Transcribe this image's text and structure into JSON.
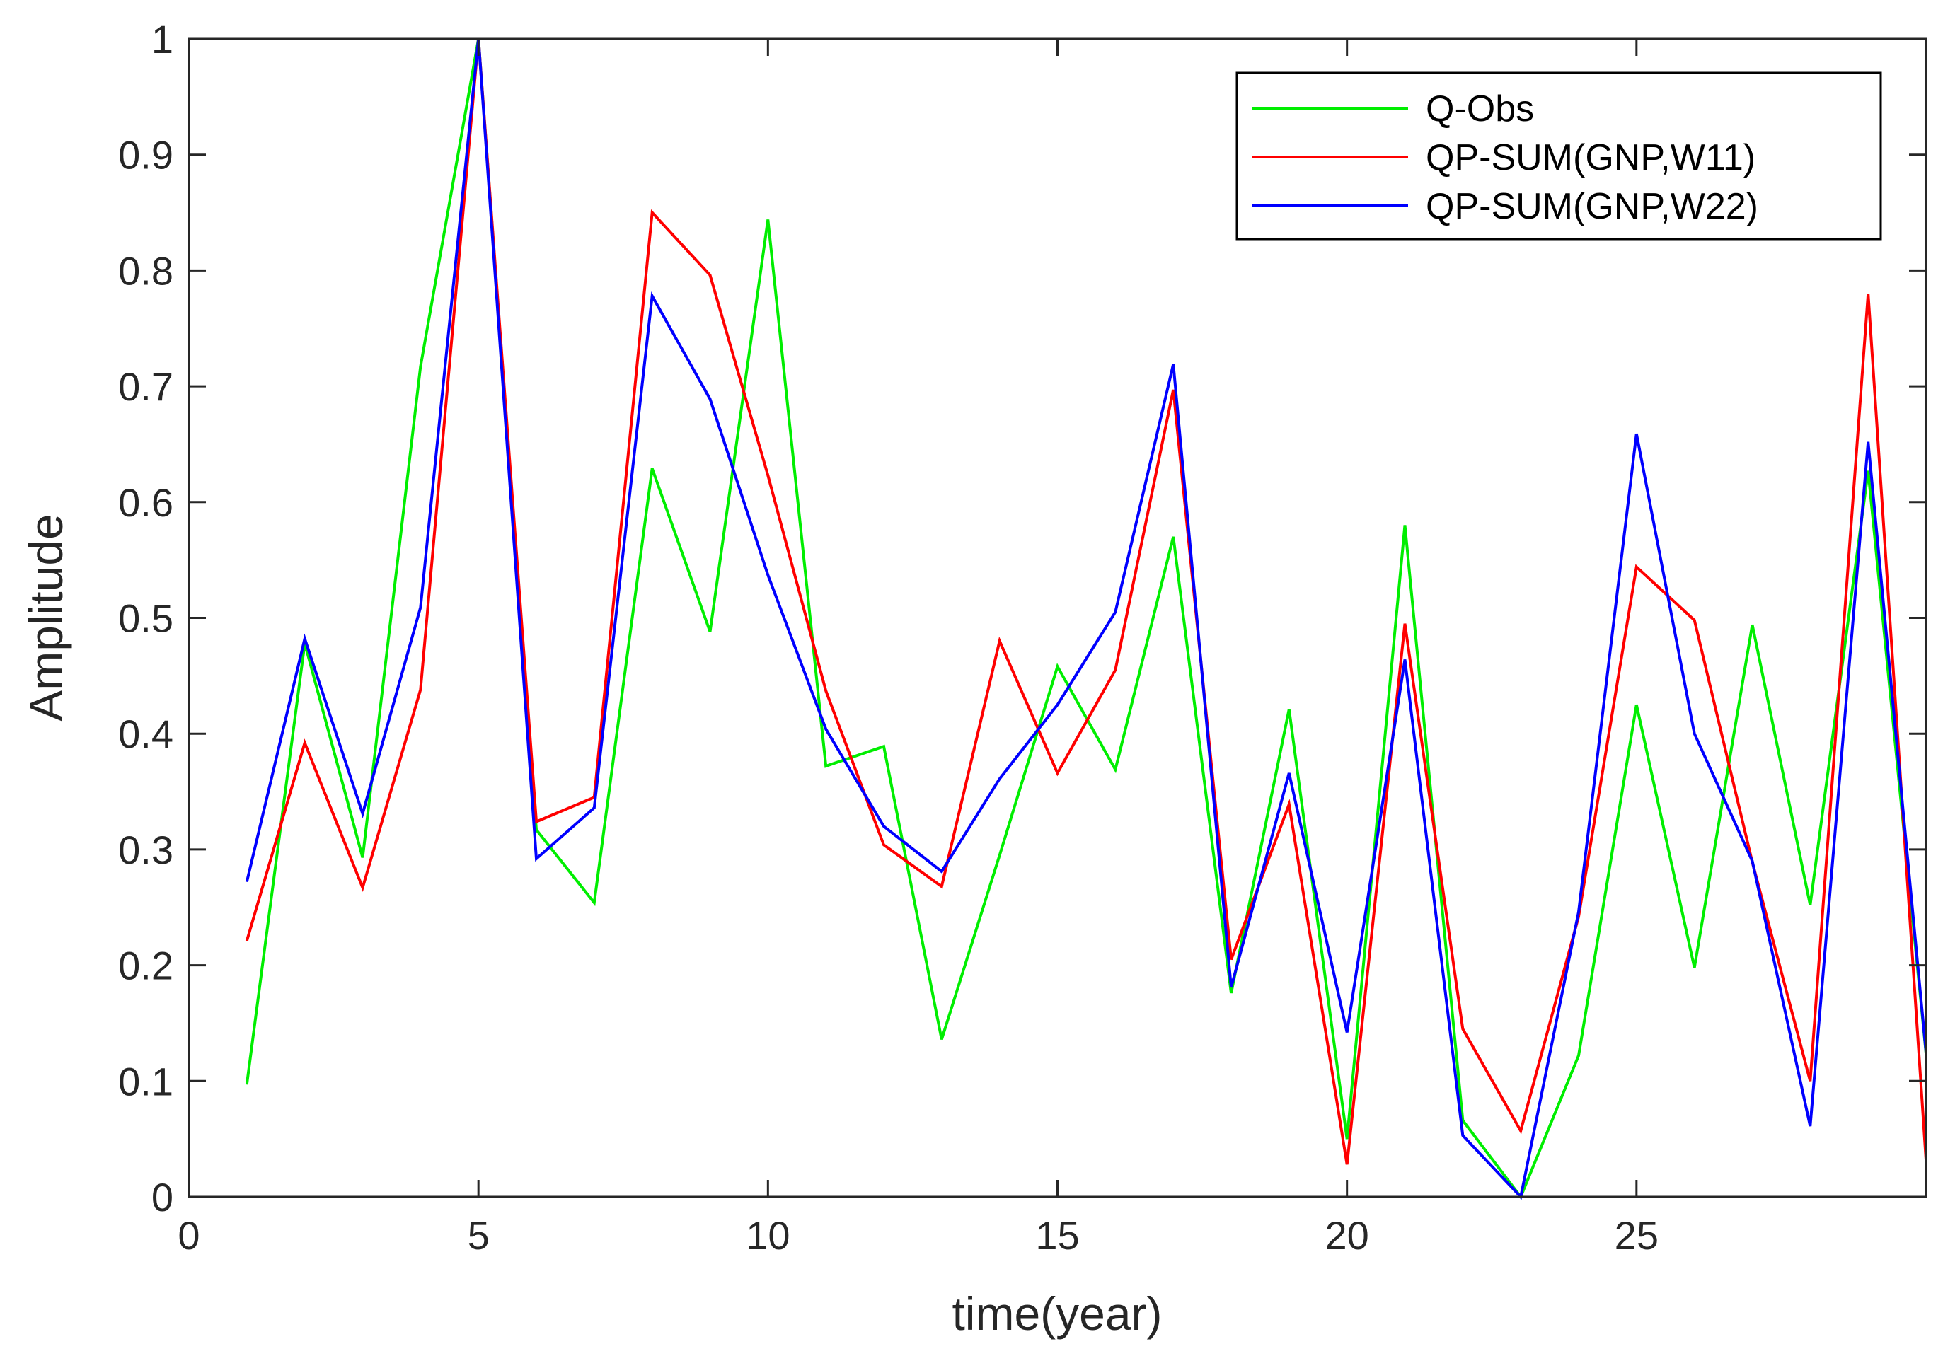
{
  "chart_data": {
    "type": "line",
    "title": "",
    "xlabel": "time(year)",
    "ylabel": "Amplitude",
    "xlim": [
      0,
      30
    ],
    "ylim": [
      0,
      1
    ],
    "xticks": [
      0,
      5,
      10,
      15,
      20,
      25
    ],
    "xtick_labels": [
      "0",
      "5",
      "10",
      "15",
      "20",
      "25"
    ],
    "yticks": [
      0,
      0.1,
      0.2,
      0.3,
      0.4,
      0.5,
      0.6,
      0.7,
      0.8,
      0.9,
      1
    ],
    "ytick_labels": [
      "0",
      "0.1",
      "0.2",
      "0.3",
      "0.4",
      "0.5",
      "0.6",
      "0.7",
      "0.8",
      "0.9",
      "1"
    ],
    "grid": false,
    "legend_position": "top-right",
    "x": [
      1,
      2,
      3,
      4,
      5,
      6,
      7,
      8,
      9,
      10,
      11,
      12,
      13,
      14,
      15,
      16,
      17,
      18,
      19,
      20,
      21,
      22,
      23,
      24,
      25,
      26,
      27,
      28,
      29,
      30
    ],
    "series": [
      {
        "name": "Q-Obs",
        "color": "#00ee00",
        "values": [
          0.097,
          0.478,
          0.293,
          0.717,
          1.0,
          0.317,
          0.254,
          0.629,
          0.488,
          0.844,
          0.372,
          0.389,
          0.136,
          0.295,
          0.458,
          0.369,
          0.57,
          0.176,
          0.421,
          0.05,
          0.58,
          0.066,
          0.0,
          0.122,
          0.425,
          0.198,
          0.494,
          0.252,
          0.627,
          0.124
        ]
      },
      {
        "name": "QP-SUM(GNP,W11)",
        "color": "#ff0000",
        "values": [
          0.221,
          0.392,
          0.267,
          0.438,
          1.0,
          0.324,
          0.345,
          0.85,
          0.796,
          0.623,
          0.437,
          0.304,
          0.268,
          0.48,
          0.366,
          0.455,
          0.697,
          0.205,
          0.339,
          0.028,
          0.495,
          0.145,
          0.057,
          0.242,
          0.544,
          0.498,
          0.289,
          0.1,
          0.78,
          0.032
        ]
      },
      {
        "name": "QP-SUM(GNP,W22)",
        "color": "#0000ff",
        "values": [
          0.272,
          0.482,
          0.331,
          0.509,
          1.0,
          0.292,
          0.336,
          0.778,
          0.689,
          0.537,
          0.404,
          0.32,
          0.281,
          0.361,
          0.425,
          0.505,
          0.719,
          0.181,
          0.366,
          0.142,
          0.464,
          0.053,
          0.0,
          0.246,
          0.659,
          0.4,
          0.29,
          0.061,
          0.652,
          0.125
        ]
      }
    ]
  }
}
